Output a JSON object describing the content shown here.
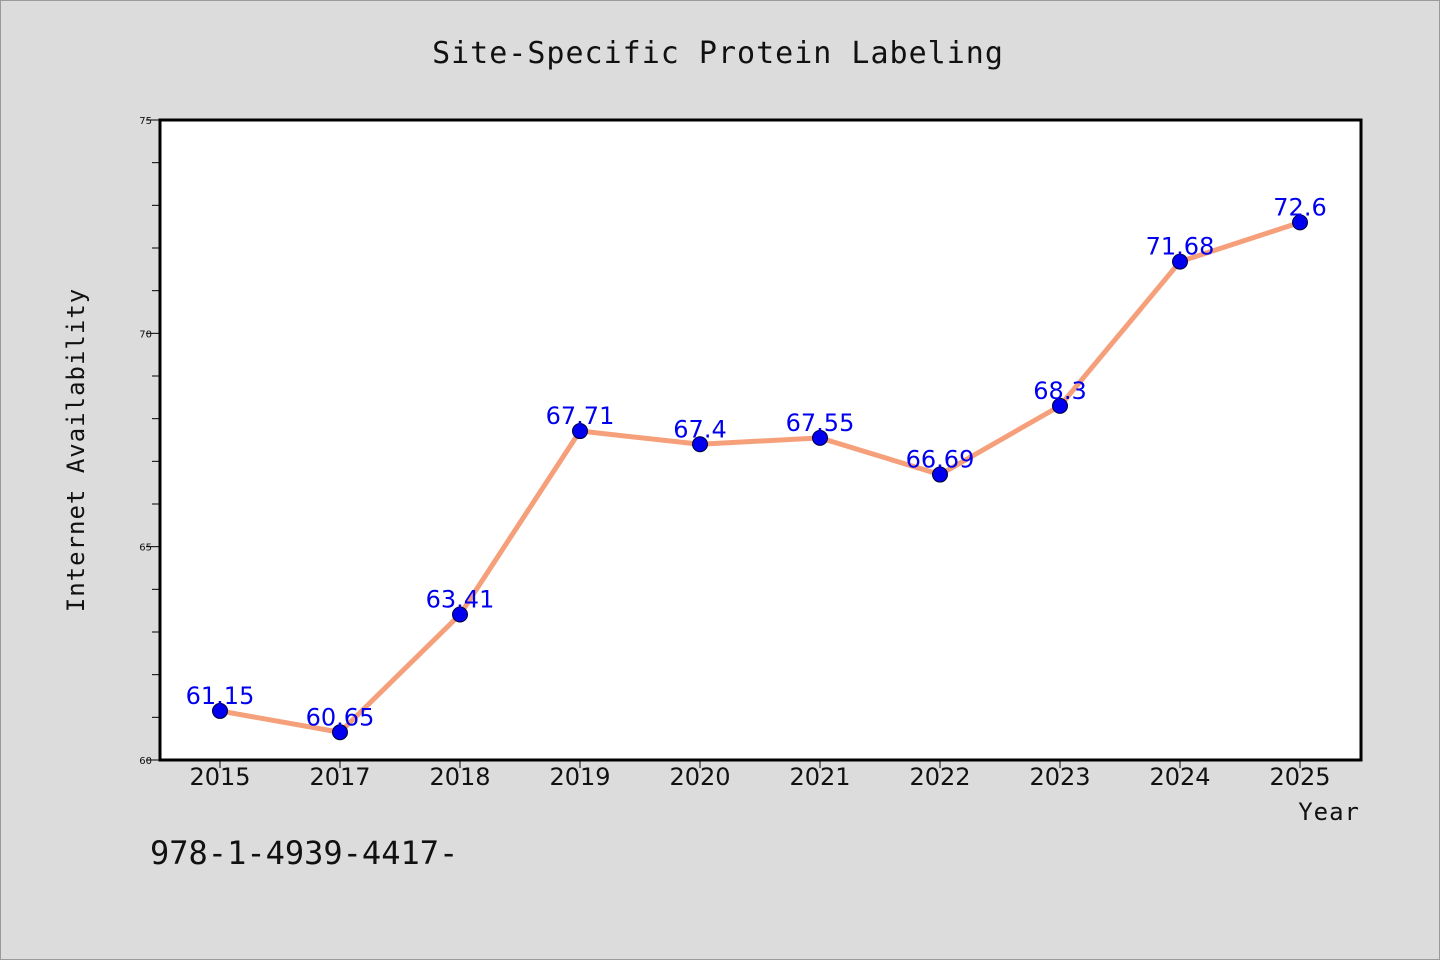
{
  "chart_data": {
    "type": "line",
    "title": "Site-Specific Protein Labeling",
    "xlabel": "Year",
    "ylabel": "Internet Availability",
    "categories": [
      "2015",
      "2017",
      "2018",
      "2019",
      "2020",
      "2021",
      "2022",
      "2023",
      "2024",
      "2025"
    ],
    "series": [
      {
        "values": [
          61.15,
          60.65,
          63.41,
          67.71,
          67.4,
          67.55,
          66.69,
          68.3,
          71.68,
          72.6
        ],
        "labels": [
          "61.15",
          "60.65",
          "63.41",
          "67.71",
          "67.4",
          "67.55",
          "66.69",
          "68.3",
          "71.68",
          "72.6"
        ],
        "line_color": "#f5a07a",
        "marker_color": "#0000ee"
      }
    ],
    "ylim": [
      60,
      75
    ],
    "yticks": [
      60,
      65,
      70,
      75
    ],
    "grid": false,
    "legend": "none"
  },
  "footer_text": "978-1-4939-4417-"
}
